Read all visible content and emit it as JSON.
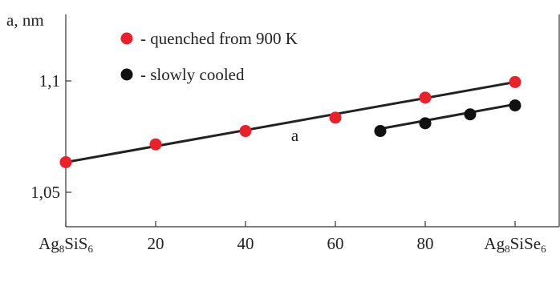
{
  "chart_data": {
    "type": "scatter",
    "ylabel": "a, nm",
    "yticks": [
      1.05,
      1.1
    ],
    "ytick_labels": [
      "1,05",
      "1,1"
    ],
    "ylim": [
      1.0,
      1.133
    ],
    "xlim": [
      0,
      100
    ],
    "xticks": [
      {
        "x": 0,
        "main": "Ag",
        "sub1": "8",
        "mid": "SiS",
        "sub2": "6"
      },
      {
        "x": 20,
        "main": "20"
      },
      {
        "x": 40,
        "main": "40"
      },
      {
        "x": 60,
        "main": "60"
      },
      {
        "x": 80,
        "main": "80"
      },
      {
        "x": 100,
        "main": "Ag",
        "sub1": "8",
        "mid": "SiSe",
        "sub2": "6"
      }
    ],
    "series": [
      {
        "name": "- quenched from 900 K",
        "color": "#e8212b",
        "x": [
          0,
          20,
          40,
          60,
          80,
          100
        ],
        "y": [
          1.0635,
          1.0715,
          1.0775,
          1.0835,
          1.0925,
          1.0995
        ],
        "fit": {
          "x": [
            0,
            100
          ],
          "y": [
            1.0635,
            1.0995
          ]
        }
      },
      {
        "name": "- slowly cooled",
        "color": "#111111",
        "x": [
          70,
          80,
          90,
          100
        ],
        "y": [
          1.0775,
          1.081,
          1.085,
          1.089
        ],
        "fit": {
          "x": [
            70,
            100
          ],
          "y": [
            1.0785,
            1.0895
          ]
        }
      }
    ],
    "annotations": [
      {
        "text": "a",
        "x": 51,
        "y": 1.0755
      }
    ],
    "legend_position": "top-left",
    "grid": false
  }
}
